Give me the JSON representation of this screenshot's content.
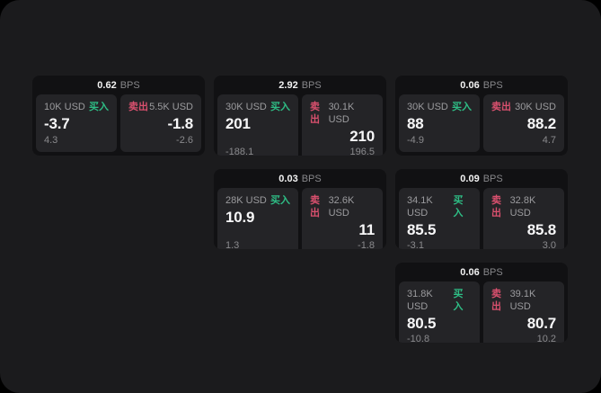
{
  "labels": {
    "buy": "买入",
    "sell": "卖出",
    "bps_unit": "BPS"
  },
  "colors": {
    "background": "#000000",
    "panel_bg": "#1b1b1d",
    "card_bg": "#111113",
    "tile_bg": "#242427",
    "buy_green": "#2ebd85",
    "sell_red": "#d9506e"
  },
  "cards": [
    {
      "bps": "0.62",
      "buy": {
        "amount": "10K USD",
        "price": "-3.7",
        "delta": "4.3"
      },
      "sell": {
        "amount": "5.5K USD",
        "price": "-1.8",
        "delta": "-2.6"
      }
    },
    {
      "bps": "2.92",
      "buy": {
        "amount": "30K USD",
        "price": "201",
        "delta": "-188.1"
      },
      "sell": {
        "amount": "30.1K USD",
        "price": "210",
        "delta": "196.5"
      }
    },
    {
      "bps": "0.06",
      "buy": {
        "amount": "30K USD",
        "price": "88",
        "delta": "-4.9"
      },
      "sell": {
        "amount": "30K USD",
        "price": "88.2",
        "delta": "4.7"
      }
    },
    {
      "bps": "0.03",
      "buy": {
        "amount": "28K USD",
        "price": "10.9",
        "delta": "1.3"
      },
      "sell": {
        "amount": "32.6K USD",
        "price": "11",
        "delta": "-1.8"
      }
    },
    {
      "bps": "0.09",
      "buy": {
        "amount": "34.1K USD",
        "price": "85.5",
        "delta": "-3.1"
      },
      "sell": {
        "amount": "32.8K USD",
        "price": "85.8",
        "delta": "3.0"
      }
    },
    {
      "bps": "0.06",
      "buy": {
        "amount": "31.8K USD",
        "price": "80.5",
        "delta": "-10.8"
      },
      "sell": {
        "amount": "39.1K USD",
        "price": "80.7",
        "delta": "10.2"
      }
    }
  ]
}
